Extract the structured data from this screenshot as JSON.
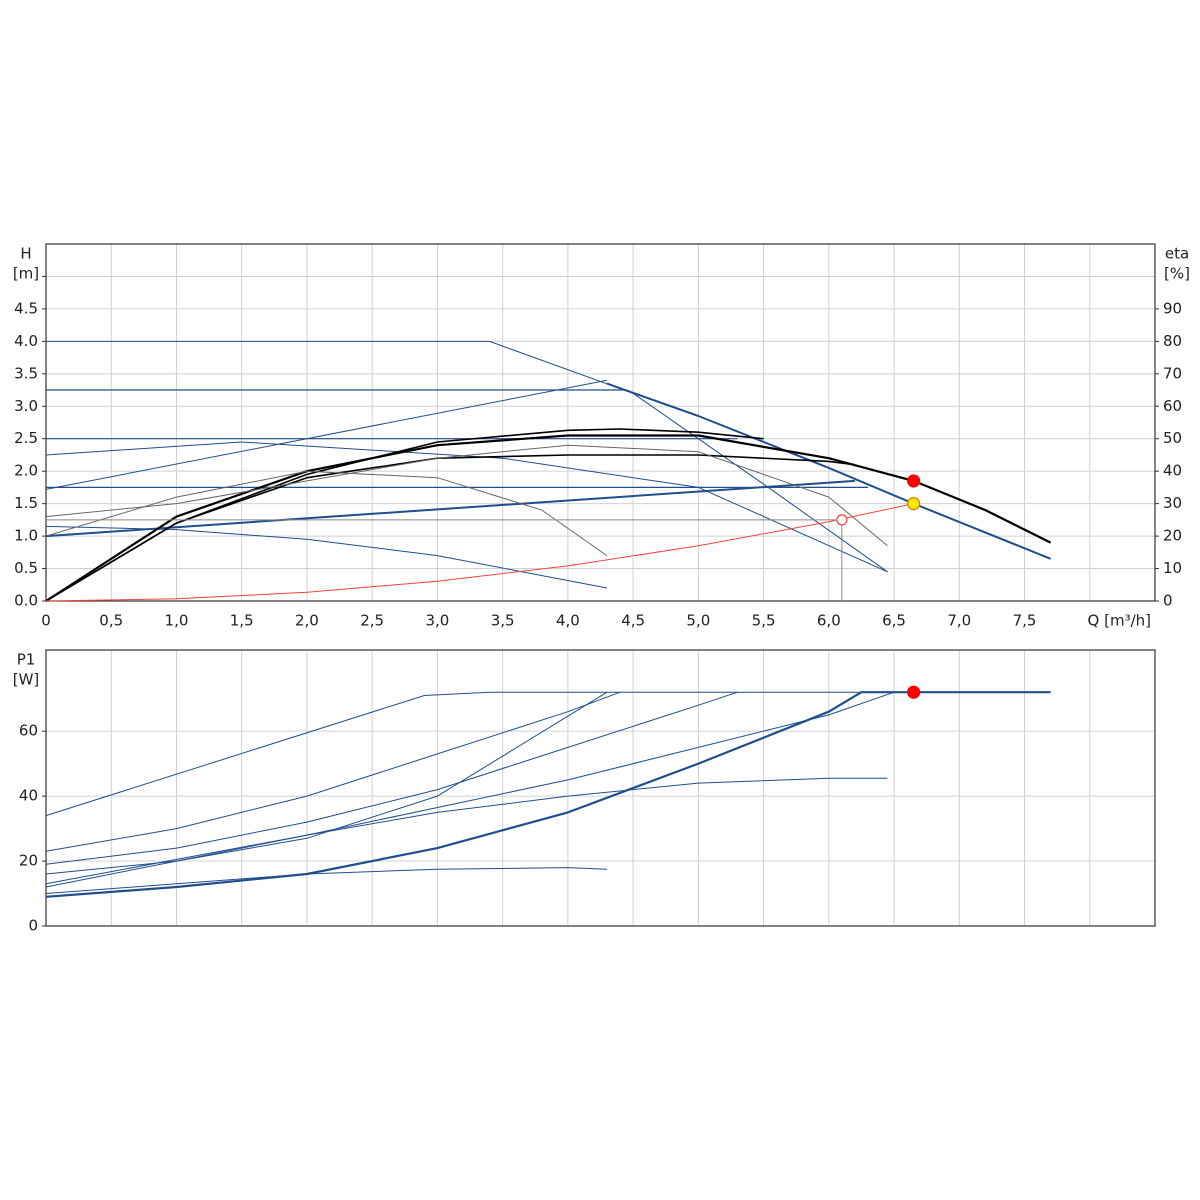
{
  "chart_data": [
    {
      "type": "line",
      "ylabel": [
        "H",
        "[m]"
      ],
      "y2label": [
        "eta",
        "[%]"
      ],
      "xlabel": "Q [m³/h]",
      "xlim": [
        0,
        8.5
      ],
      "xticks": [
        0,
        {
          "value": 0.5,
          "label": "0,5"
        },
        {
          "value": 1,
          "label": "1,0"
        },
        {
          "value": 1.5,
          "label": "1,5"
        },
        {
          "value": 2,
          "label": "2,0"
        },
        {
          "value": 2.5,
          "label": "2,5"
        },
        {
          "value": 3,
          "label": "3,0"
        },
        {
          "value": 3.5,
          "label": "3,5"
        },
        {
          "value": 4,
          "label": "4,0"
        },
        {
          "value": 4.5,
          "label": "4,5"
        },
        {
          "value": 5,
          "label": "5,0"
        },
        {
          "value": 5.5,
          "label": "5,5"
        },
        {
          "value": 6,
          "label": "6,0"
        },
        {
          "value": 6.5,
          "label": "6,5"
        },
        {
          "value": 7,
          "label": "7,0"
        },
        {
          "value": 7.5,
          "label": "7,5"
        },
        {
          "value": 8,
          "label": ""
        }
      ],
      "show_xtick_labels": true,
      "ylim": [
        0,
        5.5
      ],
      "yticks": [
        {
          "value": 0,
          "label": "0.0"
        },
        {
          "value": 0.5,
          "label": "0.5"
        },
        {
          "value": 1,
          "label": "1.0"
        },
        {
          "value": 1.5,
          "label": "1.5"
        },
        {
          "value": 2,
          "label": "2.0"
        },
        {
          "value": 2.5,
          "label": "2.5"
        },
        {
          "value": 3,
          "label": "3.0"
        },
        {
          "value": 3.5,
          "label": "3.5"
        },
        {
          "value": 4,
          "label": "4.0"
        },
        {
          "value": 4.5,
          "label": "4.5"
        },
        {
          "value": 5,
          "label": ""
        }
      ],
      "y2lim": [
        0,
        110
      ],
      "y2ticks": [
        0,
        10,
        20,
        30,
        40,
        50,
        60,
        70,
        80,
        90
      ],
      "grid": true,
      "series": [
        {
          "color": "#1f4e8c",
          "width": 1,
          "x": [
            0,
            3.4,
            4.5,
            5.5,
            6.45
          ],
          "values": [
            4.0,
            4.0,
            3.2,
            1.8,
            0.45
          ]
        },
        {
          "color": "#1f4e8c",
          "width": 1.2,
          "x": [
            0,
            4.44
          ],
          "values": [
            3.25,
            3.25
          ]
        },
        {
          "color": "#1f4e8c",
          "width": 1.2,
          "x": [
            0,
            5.3
          ],
          "values": [
            2.5,
            2.5
          ]
        },
        {
          "color": "#1f4e8c",
          "width": 1.2,
          "x": [
            0,
            6.3
          ],
          "values": [
            1.75,
            1.75
          ]
        },
        {
          "color": "#1f4e8c",
          "width": 2,
          "x": [
            4.3,
            5.0,
            6.0,
            6.65,
            7.7
          ],
          "values": [
            3.35,
            2.85,
            2.05,
            1.5,
            0.65
          ]
        },
        {
          "color": "#1f4e8c",
          "width": 2,
          "x": [
            0,
            6.2
          ],
          "values": [
            1.0,
            1.85
          ]
        },
        {
          "color": "#1f4e8c",
          "width": 1,
          "x": [
            0,
            4.3
          ],
          "values": [
            1.72,
            3.4
          ]
        },
        {
          "color": "#1f4e8c",
          "width": 1,
          "x": [
            0,
            1.5,
            3.5,
            5.0,
            6.45
          ],
          "values": [
            2.25,
            2.45,
            2.2,
            1.75,
            0.45
          ]
        },
        {
          "color": "#1f4e8c",
          "width": 1,
          "x": [
            0,
            1,
            2,
            3,
            4.3
          ],
          "values": [
            1.15,
            1.1,
            0.95,
            0.7,
            0.2
          ]
        },
        {
          "color": "#000000",
          "width": 2.2,
          "x": [
            0,
            1,
            2,
            3,
            4,
            5,
            6,
            6.65,
            7.2,
            7.7
          ],
          "values": [
            0,
            1.3,
            2.0,
            2.4,
            2.55,
            2.55,
            2.2,
            1.85,
            1.4,
            0.9
          ]
        },
        {
          "color": "#000000",
          "width": 1.6,
          "x": [
            0,
            1,
            2,
            3,
            4,
            4.4,
            5,
            5.5
          ],
          "values": [
            0,
            1.2,
            1.95,
            2.45,
            2.63,
            2.65,
            2.6,
            2.5
          ]
        },
        {
          "color": "#000000",
          "width": 1.6,
          "x": [
            0,
            1,
            2,
            3,
            4,
            5,
            6,
            6.2
          ],
          "values": [
            0,
            1.2,
            1.9,
            2.2,
            2.25,
            2.25,
            2.15,
            2.1
          ]
        },
        {
          "color": "#666666",
          "width": 1,
          "x": [
            0,
            1,
            2,
            3,
            3.8,
            4.3
          ],
          "values": [
            1.0,
            1.6,
            2.0,
            1.9,
            1.4,
            0.7
          ]
        },
        {
          "color": "#666666",
          "width": 1,
          "x": [
            0,
            1,
            2,
            3,
            4,
            5,
            6,
            6.45
          ],
          "values": [
            1.3,
            1.5,
            1.85,
            2.2,
            2.4,
            2.3,
            1.6,
            0.85
          ]
        },
        {
          "color": "#ff4040",
          "width": 1,
          "x": [
            0,
            1,
            2,
            3,
            4,
            5,
            6,
            6.65
          ],
          "values": [
            0,
            0.034,
            0.136,
            0.305,
            0.54,
            0.85,
            1.22,
            1.5
          ]
        }
      ],
      "markers": [
        {
          "x": 6.65,
          "y": 1.85,
          "color": "#ff0000",
          "style": "filled",
          "guides": false
        },
        {
          "x": 6.65,
          "y": 1.5,
          "color": "#ffe600",
          "style": "filled",
          "guides": false
        },
        {
          "x": 6.1,
          "y": 1.25,
          "color": "#ff4040",
          "style": "open",
          "guides": true
        }
      ]
    },
    {
      "type": "line",
      "ylabel": [
        "P1",
        "[W]"
      ],
      "xlim": [
        0,
        8.5
      ],
      "xticks": [
        0,
        0.5,
        1,
        1.5,
        2,
        2.5,
        3,
        3.5,
        4,
        4.5,
        5,
        5.5,
        6,
        6.5,
        7,
        7.5,
        8
      ],
      "show_xtick_labels": false,
      "ylim": [
        0,
        85
      ],
      "yticks": [
        0,
        20,
        40,
        60
      ],
      "grid": true,
      "series": [
        {
          "color": "#1f4e8c",
          "width": 2.2,
          "x": [
            0,
            1,
            2,
            3,
            4,
            5,
            6,
            6.25,
            7.7
          ],
          "values": [
            9,
            12,
            16,
            24,
            35,
            50,
            66,
            72,
            72
          ]
        },
        {
          "color": "#1f4e8c",
          "width": 1,
          "x": [
            0,
            2.9,
            3.4,
            7.7
          ],
          "values": [
            34,
            71,
            72,
            72
          ]
        },
        {
          "color": "#1f4e8c",
          "width": 1,
          "x": [
            0,
            1,
            2,
            3,
            4,
            4.3
          ],
          "values": [
            10,
            13,
            16,
            17.5,
            18,
            17.5
          ]
        },
        {
          "color": "#1f4e8c",
          "width": 1,
          "x": [
            0,
            1,
            2,
            3,
            4,
            5,
            6,
            6.45
          ],
          "values": [
            12,
            20,
            28,
            35,
            40,
            44,
            45.5,
            45.5
          ]
        },
        {
          "color": "#1f4e8c",
          "width": 1,
          "x": [
            0,
            1,
            2,
            3,
            4,
            4.4
          ],
          "values": [
            23,
            30,
            40,
            53,
            66,
            72
          ]
        },
        {
          "color": "#1f4e8c",
          "width": 1,
          "x": [
            0,
            1,
            2,
            3,
            4,
            5,
            5.3
          ],
          "values": [
            19,
            24,
            32,
            42,
            55,
            68,
            72
          ]
        },
        {
          "color": "#1f4e8c",
          "width": 1,
          "x": [
            0,
            1,
            2,
            3,
            4.3
          ],
          "values": [
            16,
            20,
            27,
            40,
            72
          ]
        },
        {
          "color": "#1f4e8c",
          "width": 1,
          "x": [
            0,
            2,
            4,
            6,
            6.5
          ],
          "values": [
            13,
            28,
            45,
            65,
            72
          ]
        }
      ],
      "markers": [
        {
          "x": 6.65,
          "y": 72,
          "color": "#ff0000",
          "style": "filled",
          "guides": false
        }
      ]
    }
  ]
}
